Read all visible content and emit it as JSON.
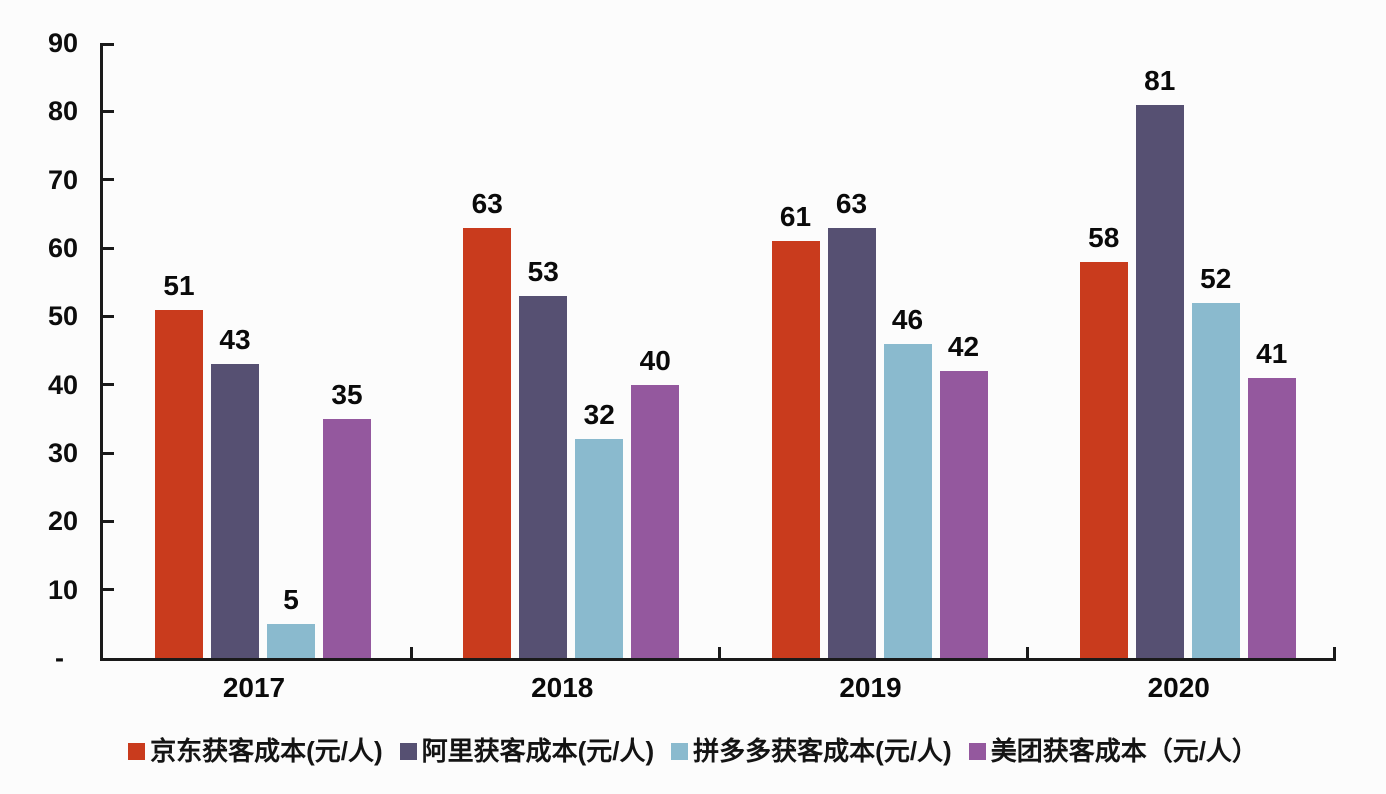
{
  "chart_data": {
    "type": "bar",
    "title": "",
    "xlabel": "",
    "ylabel": "",
    "categories": [
      "2017",
      "2018",
      "2019",
      "2020"
    ],
    "series": [
      {
        "name": "京东获客成本(元/人)",
        "color": "#c93b1d",
        "values": [
          51,
          63,
          61,
          58
        ]
      },
      {
        "name": "阿里获客成本(元/人)",
        "color": "#565072",
        "values": [
          43,
          53,
          63,
          81
        ]
      },
      {
        "name": "拼多多获客成本(元/人)",
        "color": "#8abace",
        "values": [
          5,
          32,
          46,
          52
        ]
      },
      {
        "name": "美团获客成本（元/人）",
        "color": "#94589e",
        "values": [
          35,
          40,
          42,
          41
        ]
      }
    ],
    "ylim": [
      0,
      90
    ],
    "y_tick_labels": [
      "90",
      "80",
      "70",
      "60",
      "50",
      "40",
      "30",
      "20",
      "10",
      "-"
    ],
    "y_tick_values": [
      90,
      80,
      70,
      60,
      50,
      40,
      30,
      20,
      10,
      0
    ],
    "grid": false,
    "data_labels": true,
    "legend_position": "bottom",
    "colors": {
      "axis": "#1a1a1a",
      "text": "#0d0d0d",
      "background": "#fcfcfc"
    }
  }
}
